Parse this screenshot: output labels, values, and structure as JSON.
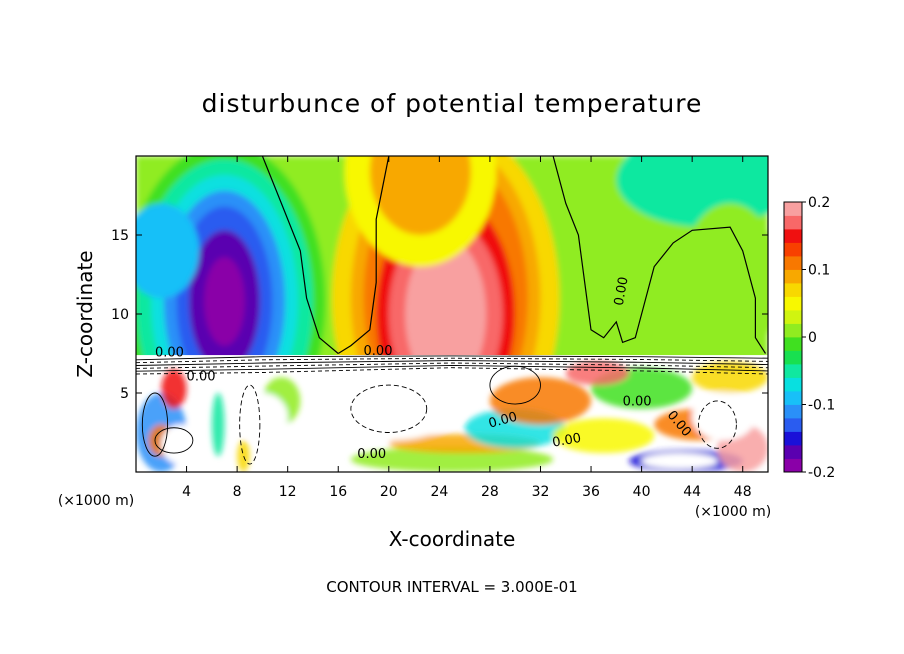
{
  "chart_data": {
    "type": "heatmap",
    "title": "disturbunce of potential temperature",
    "xlabel": "X-coordinate",
    "ylabel": "Z-coordinate",
    "x_unit": "(×1000 m)",
    "y_unit": "(×1000 m)",
    "xlim": [
      0,
      50
    ],
    "ylim": [
      0,
      20
    ],
    "x_ticks": [
      4,
      8,
      12,
      16,
      20,
      24,
      28,
      32,
      36,
      40,
      44,
      48
    ],
    "y_ticks": [
      5,
      10,
      15
    ],
    "colorbar": {
      "range": [
        -0.2,
        0.2
      ],
      "ticks": [
        0.2,
        0.1,
        0,
        -0.1,
        -0.2
      ],
      "tick_labels": [
        "0.2",
        "0.1",
        "0",
        "-0.1",
        "-0.2"
      ],
      "colors": [
        "#8a00a8",
        "#5a00b0",
        "#1a10d8",
        "#2a5cf0",
        "#2a90f8",
        "#18c0f8",
        "#08e0e0",
        "#10e8a0",
        "#18e050",
        "#40e020",
        "#90ec20",
        "#d0f410",
        "#f8f800",
        "#f8d800",
        "#f8a800",
        "#f87800",
        "#f84000",
        "#f01010",
        "#f86868",
        "#f8a0a0"
      ]
    },
    "contour_interval_text": "CONTOUR INTERVAL = 3.000E-01",
    "contour_labels": [
      "0.00",
      "0.00",
      "0.00",
      "0.00",
      "0.00",
      "0.00",
      "0.00",
      "0.00",
      "0.00"
    ],
    "features": [
      {
        "kind": "minimum",
        "x": 7.0,
        "z": 10.5,
        "value": -0.2
      },
      {
        "kind": "maximum",
        "x": 24.5,
        "z": 10.0,
        "value": 0.2
      },
      {
        "kind": "maximum",
        "x": 22.5,
        "z": 19.5,
        "value": 0.1
      },
      {
        "kind": "minimum",
        "x": 2.0,
        "z": 14.0,
        "value": -0.1
      },
      {
        "kind": "minimum",
        "x": 45.0,
        "z": 18.5,
        "value": -0.05
      }
    ]
  }
}
